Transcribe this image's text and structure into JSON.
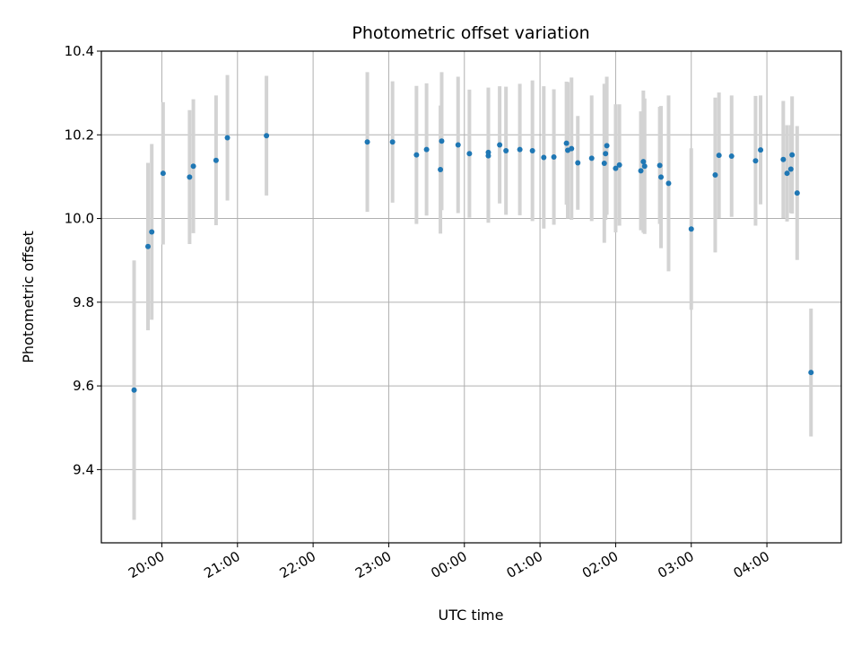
{
  "chart_data": {
    "type": "scatter",
    "title": "Photometric offset variation",
    "xlabel": "UTC time",
    "ylabel": "Photometric offset",
    "ylim": [
      9.225,
      10.4
    ],
    "yticks": [
      "9.4",
      "9.6",
      "9.8",
      "10.0",
      "10.2",
      "10.4"
    ],
    "xlim": [
      "19:12",
      "04:59"
    ],
    "xticks": [
      "20:00",
      "21:00",
      "22:00",
      "23:00",
      "00:00",
      "01:00",
      "02:00",
      "03:00",
      "04:00"
    ],
    "grid": true,
    "colors": {
      "point": "#1f77b4",
      "errorbar": "#d3d3d3",
      "grid": "#b0b0b0"
    },
    "points": [
      {
        "x": "19:38",
        "y": 9.59,
        "err": 0.31
      },
      {
        "x": "19:49",
        "y": 9.933,
        "err": 0.2
      },
      {
        "x": "19:52",
        "y": 9.968,
        "err": 0.21
      },
      {
        "x": "20:01",
        "y": 10.108,
        "err": 0.17
      },
      {
        "x": "20:22",
        "y": 10.099,
        "err": 0.16
      },
      {
        "x": "20:25",
        "y": 10.125,
        "err": 0.16
      },
      {
        "x": "20:43",
        "y": 10.139,
        "err": 0.155
      },
      {
        "x": "20:52",
        "y": 10.193,
        "err": 0.15
      },
      {
        "x": "21:23",
        "y": 10.198,
        "err": 0.143
      },
      {
        "x": "22:43",
        "y": 10.183,
        "err": 0.167
      },
      {
        "x": "23:03",
        "y": 10.183,
        "err": 0.145
      },
      {
        "x": "23:22",
        "y": 10.152,
        "err": 0.165
      },
      {
        "x": "23:30",
        "y": 10.165,
        "err": 0.158
      },
      {
        "x": "23:41",
        "y": 10.117,
        "err": 0.153
      },
      {
        "x": "23:42",
        "y": 10.185,
        "err": 0.165
      },
      {
        "x": "23:55",
        "y": 10.176,
        "err": 0.163
      },
      {
        "x": "00:04",
        "y": 10.155,
        "err": 0.153
      },
      {
        "x": "00:19",
        "y": 10.158,
        "err": 0.155
      },
      {
        "x": "00:19",
        "y": 10.15,
        "err": 0.16
      },
      {
        "x": "00:28",
        "y": 10.176,
        "err": 0.14
      },
      {
        "x": "00:33",
        "y": 10.162,
        "err": 0.153
      },
      {
        "x": "00:44",
        "y": 10.165,
        "err": 0.157
      },
      {
        "x": "00:54",
        "y": 10.162,
        "err": 0.168
      },
      {
        "x": "01:03",
        "y": 10.146,
        "err": 0.17
      },
      {
        "x": "01:11",
        "y": 10.147,
        "err": 0.162
      },
      {
        "x": "01:21",
        "y": 10.18,
        "err": 0.147
      },
      {
        "x": "01:22",
        "y": 10.163,
        "err": 0.163
      },
      {
        "x": "01:25",
        "y": 10.167,
        "err": 0.17
      },
      {
        "x": "01:30",
        "y": 10.133,
        "err": 0.112
      },
      {
        "x": "01:41",
        "y": 10.144,
        "err": 0.15
      },
      {
        "x": "01:51",
        "y": 10.132,
        "err": 0.19
      },
      {
        "x": "01:52",
        "y": 10.155,
        "err": 0.158
      },
      {
        "x": "01:53",
        "y": 10.174,
        "err": 0.165
      },
      {
        "x": "02:00",
        "y": 10.12,
        "err": 0.153
      },
      {
        "x": "02:03",
        "y": 10.128,
        "err": 0.145
      },
      {
        "x": "02:20",
        "y": 10.114,
        "err": 0.142
      },
      {
        "x": "02:22",
        "y": 10.136,
        "err": 0.17
      },
      {
        "x": "02:23",
        "y": 10.125,
        "err": 0.162
      },
      {
        "x": "02:35",
        "y": 10.127,
        "err": 0.14
      },
      {
        "x": "02:36",
        "y": 10.099,
        "err": 0.17
      },
      {
        "x": "02:42",
        "y": 10.084,
        "err": 0.21
      },
      {
        "x": "03:00",
        "y": 9.975,
        "err": 0.193
      },
      {
        "x": "03:19",
        "y": 10.104,
        "err": 0.185
      },
      {
        "x": "03:22",
        "y": 10.151,
        "err": 0.15
      },
      {
        "x": "03:32",
        "y": 10.149,
        "err": 0.145
      },
      {
        "x": "03:51",
        "y": 10.138,
        "err": 0.155
      },
      {
        "x": "03:55",
        "y": 10.164,
        "err": 0.13
      },
      {
        "x": "04:13",
        "y": 10.141,
        "err": 0.14
      },
      {
        "x": "04:16",
        "y": 10.108,
        "err": 0.115
      },
      {
        "x": "04:19",
        "y": 10.118,
        "err": 0.105
      },
      {
        "x": "04:20",
        "y": 10.152,
        "err": 0.14
      },
      {
        "x": "04:24",
        "y": 10.061,
        "err": 0.16
      },
      {
        "x": "04:35",
        "y": 9.632,
        "err": 0.153
      }
    ]
  }
}
